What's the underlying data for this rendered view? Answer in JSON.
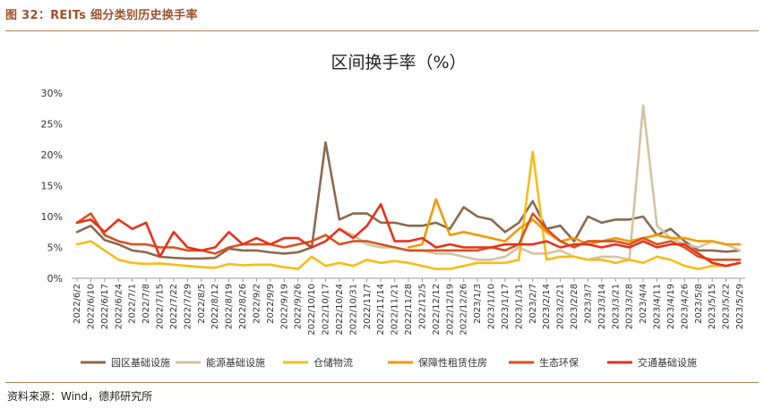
{
  "figure": {
    "label": "图 32：REITs 细分类别历史换手率",
    "source": "资料来源：Wind，德邦研究所"
  },
  "chart_data": {
    "type": "line",
    "title": "区间换手率（%）",
    "xlabel": "",
    "ylabel": "",
    "ylim": [
      0,
      30
    ],
    "yticks": [
      "0%",
      "5%",
      "10%",
      "15%",
      "20%",
      "25%",
      "30%"
    ],
    "grid": false,
    "legend_position": "bottom",
    "x": [
      "2022/6/2",
      "2022/6/10",
      "2022/6/17",
      "2022/6/24",
      "2022/7/1",
      "2022/7/8",
      "2022/7/15",
      "2022/7/22",
      "2022/7/29",
      "2022/8/5",
      "2022/8/12",
      "2022/8/19",
      "2022/8/26",
      "2022/9/2",
      "2022/9/9",
      "2022/9/19",
      "2022/9/26",
      "2022/10/10",
      "2022/10/17",
      "2022/10/24",
      "2022/10/31",
      "2022/11/7",
      "2022/11/14",
      "2022/11/21",
      "2022/11/28",
      "2022/12/5",
      "2022/12/12",
      "2022/12/19",
      "2022/12/26",
      "2023/1/3",
      "2023/1/10",
      "2023/1/17",
      "2023/1/31",
      "2023/2/7",
      "2023/2/14",
      "2023/2/21",
      "2023/2/28",
      "2023/3/7",
      "2023/3/14",
      "2023/3/21",
      "2023/3/28",
      "2023/4/4",
      "2023/4/11",
      "2023/4/19",
      "2023/4/26",
      "2023/5/8",
      "2023/5/15",
      "2023/5/22",
      "2023/5/29"
    ],
    "series": [
      {
        "name": "园区基础设施",
        "color": "#8b6a4e",
        "values": [
          7.5,
          8.5,
          6.2,
          5.5,
          4.5,
          4.2,
          3.5,
          3.3,
          3.2,
          3.2,
          3.3,
          4.8,
          4.5,
          4.5,
          4.2,
          4.0,
          4.2,
          5.0,
          22.0,
          9.5,
          10.5,
          10.5,
          9.0,
          9.0,
          8.5,
          8.5,
          9.0,
          8.0,
          11.5,
          10.0,
          9.5,
          7.5,
          9.0,
          12.5,
          8.0,
          8.5,
          6.0,
          10.0,
          9.0,
          9.5,
          9.5,
          10.0,
          7.0,
          8.0,
          6.0,
          4.5,
          4.5,
          4.3,
          4.5
        ]
      },
      {
        "name": "能源基础设施",
        "color": "#d5c2a0",
        "values": [
          null,
          null,
          null,
          null,
          null,
          null,
          null,
          null,
          null,
          null,
          null,
          null,
          null,
          null,
          null,
          null,
          null,
          null,
          null,
          8.0,
          7.0,
          5.5,
          5.0,
          5.0,
          4.5,
          4.5,
          4.0,
          4.0,
          3.5,
          3.0,
          3.0,
          3.5,
          5.0,
          4.0,
          4.0,
          4.5,
          3.5,
          3.0,
          3.5,
          3.5,
          3.0,
          28.0,
          8.5,
          6.5,
          5.5,
          5.0,
          6.0,
          5.5,
          4.5
        ]
      },
      {
        "name": "仓储物流",
        "color": "#f6bd16",
        "values": [
          5.5,
          6.0,
          4.5,
          3.0,
          2.5,
          2.3,
          2.4,
          2.2,
          2.0,
          1.8,
          1.7,
          2.3,
          2.1,
          2.2,
          2.2,
          1.8,
          1.5,
          3.5,
          2.0,
          2.5,
          2.0,
          3.0,
          2.5,
          2.8,
          2.5,
          2.0,
          1.5,
          1.5,
          2.0,
          2.5,
          2.5,
          2.5,
          3.0,
          20.5,
          3.0,
          3.5,
          3.5,
          3.0,
          3.0,
          2.5,
          3.0,
          2.5,
          3.5,
          3.0,
          2.0,
          1.5,
          2.0,
          2.0,
          2.5
        ]
      },
      {
        "name": "保障性租赁住房",
        "color": "#f39800",
        "values": [
          null,
          null,
          null,
          null,
          null,
          null,
          null,
          null,
          null,
          null,
          null,
          null,
          null,
          null,
          null,
          null,
          null,
          null,
          null,
          null,
          null,
          null,
          null,
          null,
          5.0,
          5.5,
          12.8,
          7.0,
          7.5,
          7.0,
          6.5,
          6.0,
          8.0,
          9.5,
          7.5,
          6.0,
          6.5,
          5.5,
          6.0,
          6.5,
          6.0,
          6.5,
          7.0,
          6.5,
          6.5,
          6.0,
          6.0,
          5.5,
          5.5
        ]
      },
      {
        "name": "生态环保",
        "color": "#d6521e",
        "values": [
          9.0,
          10.5,
          7.0,
          6.0,
          5.5,
          5.5,
          5.0,
          5.0,
          4.5,
          4.5,
          4.0,
          5.0,
          5.5,
          5.5,
          5.5,
          5.0,
          5.5,
          6.0,
          7.0,
          5.5,
          6.0,
          6.0,
          5.5,
          5.0,
          4.5,
          4.5,
          4.5,
          4.5,
          4.5,
          4.5,
          5.0,
          4.5,
          5.5,
          10.5,
          8.0,
          6.0,
          5.0,
          6.0,
          6.0,
          6.0,
          5.5,
          6.5,
          5.5,
          6.0,
          5.0,
          3.5,
          3.0,
          3.0,
          3.0
        ]
      },
      {
        "name": "交通基础设施",
        "color": "#e8311a",
        "values": [
          9.0,
          9.5,
          7.5,
          9.5,
          8.0,
          9.0,
          3.5,
          7.5,
          5.0,
          4.5,
          5.0,
          7.5,
          5.5,
          6.5,
          5.5,
          6.5,
          6.5,
          5.0,
          6.0,
          8.0,
          6.5,
          8.5,
          12.0,
          6.0,
          6.0,
          6.5,
          5.0,
          5.5,
          5.0,
          5.0,
          5.0,
          5.5,
          5.5,
          5.5,
          6.0,
          5.0,
          5.5,
          5.5,
          5.0,
          5.5,
          5.0,
          6.0,
          5.0,
          5.5,
          5.5,
          4.0,
          2.5,
          2.0,
          2.5
        ]
      }
    ]
  }
}
